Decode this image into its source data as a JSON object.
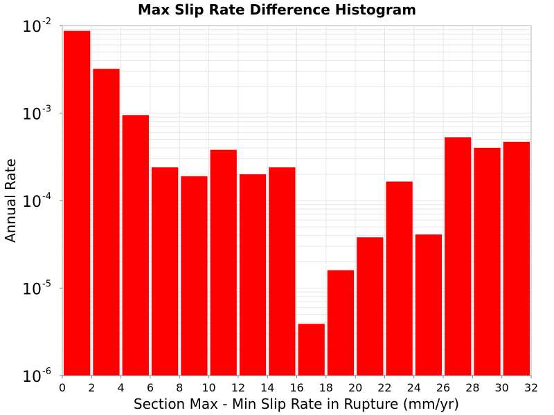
{
  "chart_data": {
    "type": "bar",
    "title": "Max Slip Rate Difference Histogram",
    "xlabel": "Section Max - Min Slip Rate in Rupture (mm/yr)",
    "ylabel": "Annual Rate",
    "yscale": "log",
    "xlim": [
      0,
      32
    ],
    "ylim": [
      1e-06,
      0.01
    ],
    "bin_width": 2,
    "x_ticks": [
      0,
      2,
      4,
      6,
      8,
      10,
      12,
      14,
      16,
      18,
      20,
      22,
      24,
      26,
      28,
      30,
      32
    ],
    "y_ticks": [
      {
        "base": "10",
        "exp": "-2",
        "value": 0.01
      },
      {
        "base": "10",
        "exp": "-3",
        "value": 0.001
      },
      {
        "base": "10",
        "exp": "-4",
        "value": 0.0001
      },
      {
        "base": "10",
        "exp": "-5",
        "value": 1e-05
      },
      {
        "base": "10",
        "exp": "-6",
        "value": 1e-06
      }
    ],
    "bins": [
      {
        "x_start": 0,
        "x_end": 2,
        "value": 0.0087
      },
      {
        "x_start": 2,
        "x_end": 4,
        "value": 0.0032
      },
      {
        "x_start": 4,
        "x_end": 6,
        "value": 0.00095
      },
      {
        "x_start": 6,
        "x_end": 8,
        "value": 0.00024
      },
      {
        "x_start": 8,
        "x_end": 10,
        "value": 0.00019
      },
      {
        "x_start": 10,
        "x_end": 12,
        "value": 0.00038
      },
      {
        "x_start": 12,
        "x_end": 14,
        "value": 0.0002
      },
      {
        "x_start": 14,
        "x_end": 16,
        "value": 0.00024
      },
      {
        "x_start": 16,
        "x_end": 18,
        "value": 3.9e-06
      },
      {
        "x_start": 18,
        "x_end": 20,
        "value": 1.6e-05
      },
      {
        "x_start": 20,
        "x_end": 22,
        "value": 3.8e-05
      },
      {
        "x_start": 22,
        "x_end": 24,
        "value": 0.000165
      },
      {
        "x_start": 24,
        "x_end": 26,
        "value": 4.1e-05
      },
      {
        "x_start": 26,
        "x_end": 28,
        "value": 0.00053
      },
      {
        "x_start": 28,
        "x_end": 30,
        "value": 0.0004
      },
      {
        "x_start": 30,
        "x_end": 32,
        "value": 0.00047
      }
    ],
    "bar_color": "#ff0000",
    "grid": true,
    "grid_color": "#e6e6e6",
    "plot_border_color": "#b0b0b0"
  }
}
